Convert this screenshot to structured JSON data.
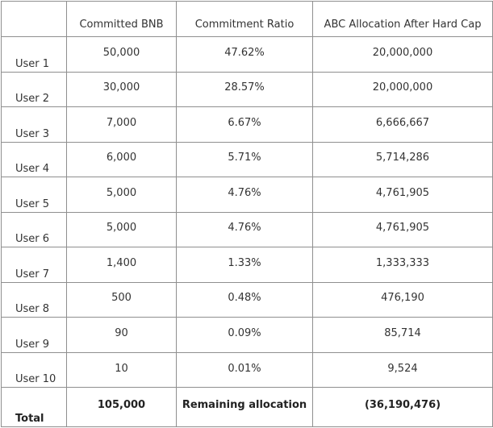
{
  "table": {
    "headers": [
      "",
      "Committed BNB",
      "Commitment Ratio",
      "ABC Allocation After Hard Cap"
    ],
    "rows": [
      [
        "User 1",
        "50,000",
        "47.62%",
        "20,000,000"
      ],
      [
        "User 2",
        "30,000",
        "28.57%",
        "20,000,000"
      ],
      [
        "User 3",
        "7,000",
        "6.67%",
        "6,666,667"
      ],
      [
        "User 4",
        "6,000",
        "5.71%",
        "5,714,286"
      ],
      [
        "User 5",
        "5,000",
        "4.76%",
        "4,761,905"
      ],
      [
        "User 6",
        "5,000",
        "4.76%",
        "4,761,905"
      ],
      [
        "User 7",
        "1,400",
        "1.33%",
        "1,333,333"
      ],
      [
        "User 8",
        "500",
        "0.48%",
        "476,190"
      ],
      [
        "User 9",
        "90",
        "0.09%",
        "85,714"
      ],
      [
        "User 10",
        "10",
        "0.01%",
        "9,524"
      ]
    ],
    "total": [
      "Total",
      "105,000",
      "Remaining allocation",
      "(36,190,476)"
    ]
  }
}
